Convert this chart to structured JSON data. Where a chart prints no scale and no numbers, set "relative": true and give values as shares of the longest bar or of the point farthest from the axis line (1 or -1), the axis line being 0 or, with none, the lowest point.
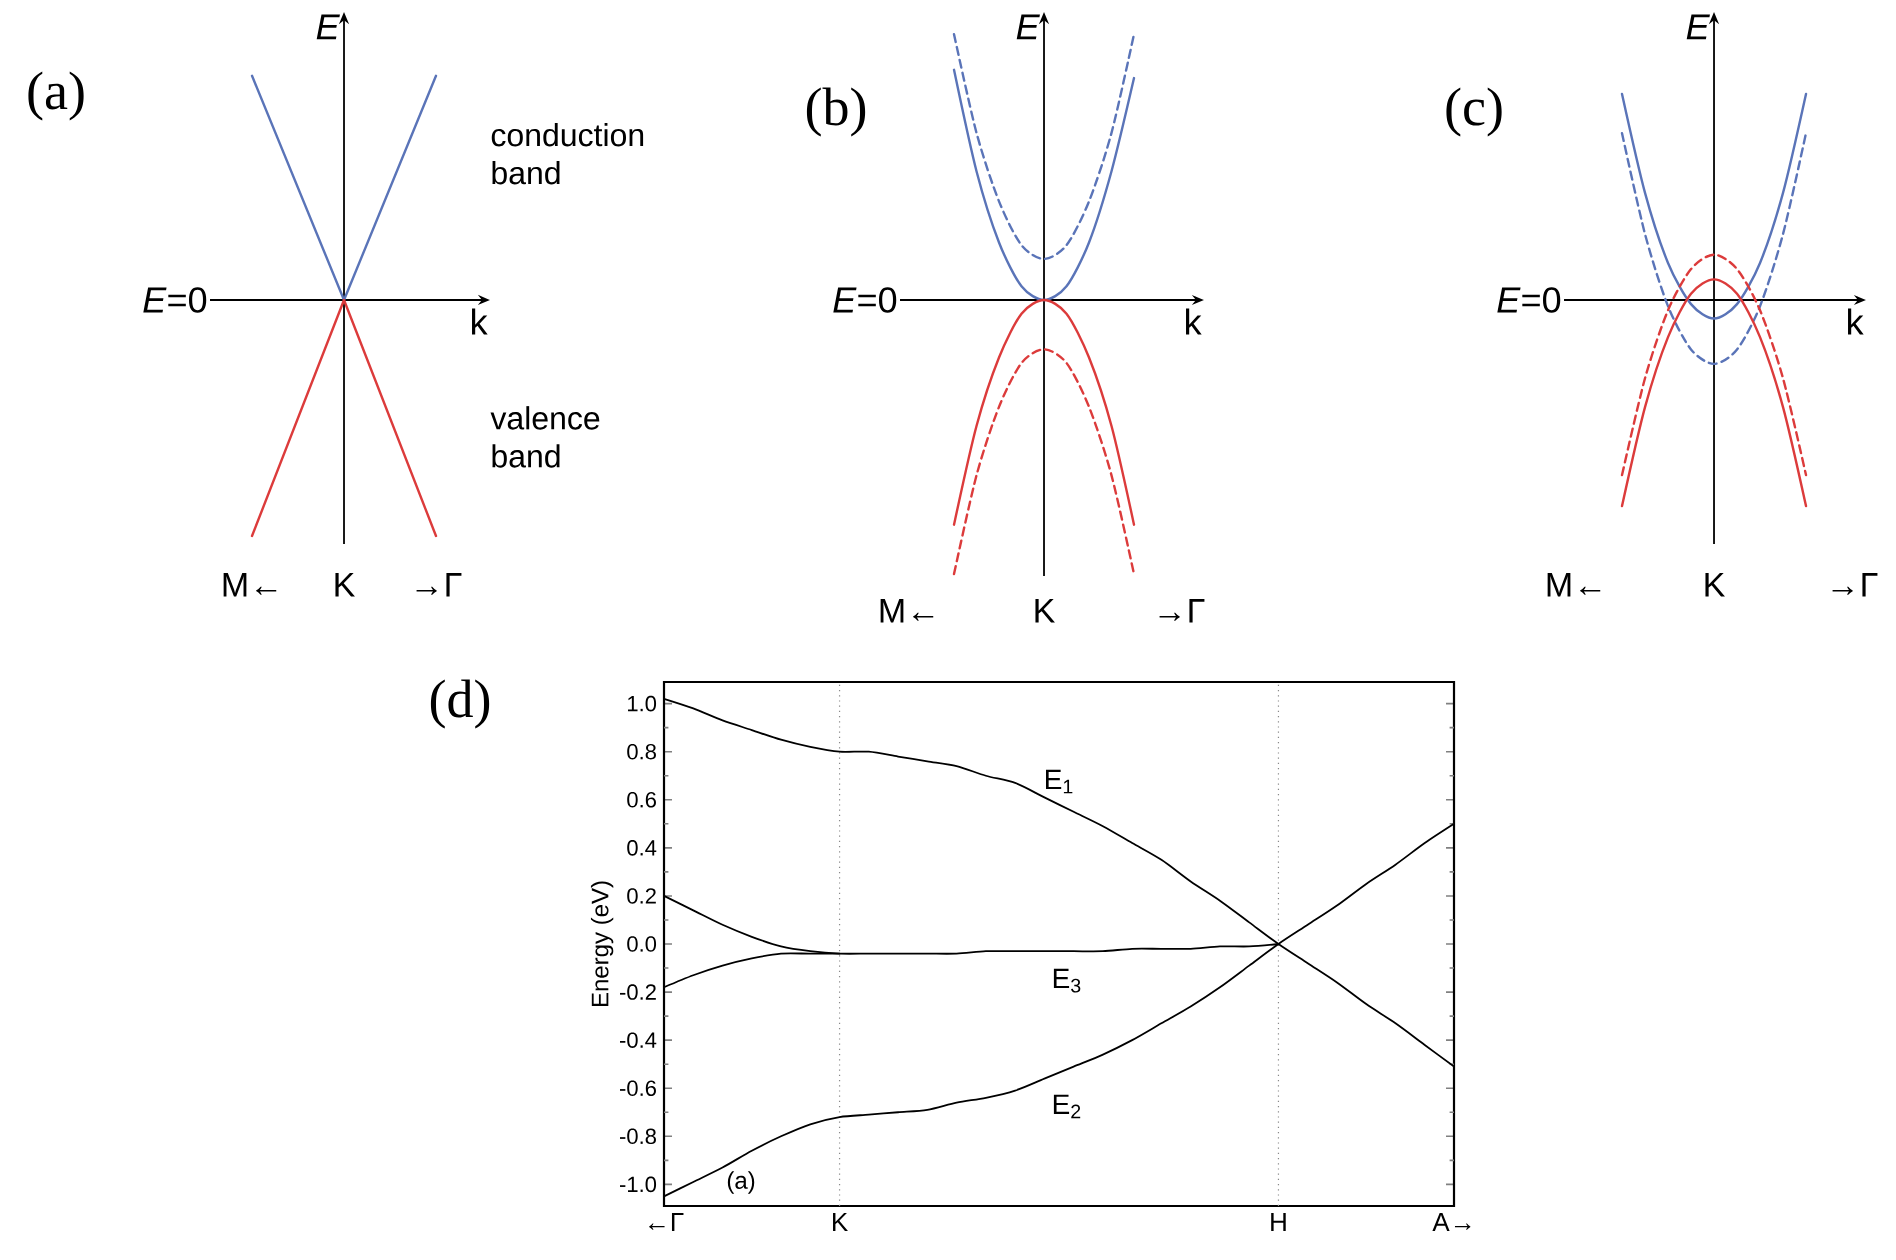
{
  "chart_data": [
    {
      "type": "line",
      "title": "(a)",
      "xlabel": "k",
      "ylabel": "E",
      "relative": true,
      "categories": [
        "M←",
        "K",
        "→Γ"
      ],
      "annotations": [
        "*E*=0",
        "conduction band",
        "valence band"
      ],
      "series": [
        {
          "color": "#5a74b8",
          "values": [
            0.95,
            0,
            0.95
          ]
        },
        {
          "color": "#dc3b3b",
          "values": [
            -1,
            0,
            -1
          ]
        }
      ]
    },
    {
      "type": "line",
      "title": "(b)",
      "xlabel": "k",
      "ylabel": "E",
      "relative": true,
      "categories": [
        "M←",
        null,
        null,
        null,
        null,
        null,
        "K",
        null,
        null,
        null,
        null,
        null,
        "→Γ"
      ],
      "annotations": [
        "*E*=0"
      ],
      "series": [
        {
          "color": "#5a74b8",
          "line_style": "solid",
          "values": [
            null,
            null,
            0.84,
            0.47,
            0.21,
            0.05,
            0,
            0.05,
            0.21,
            0.47,
            0.81,
            null,
            null
          ]
        },
        {
          "color": "#5a74b8",
          "line_style": "dashed",
          "values": [
            null,
            null,
            0.97,
            0.61,
            0.36,
            0.2,
            0.15,
            0.2,
            0.36,
            0.61,
            0.97,
            null,
            null
          ]
        },
        {
          "color": "#dc3b3b",
          "line_style": "solid",
          "values": [
            null,
            null,
            -0.82,
            -0.46,
            -0.21,
            -0.05,
            0,
            -0.05,
            -0.21,
            -0.46,
            -0.82,
            null,
            null
          ]
        },
        {
          "color": "#dc3b3b",
          "line_style": "dashed",
          "values": [
            null,
            null,
            -1,
            -0.64,
            -0.39,
            -0.23,
            -0.18,
            -0.23,
            -0.39,
            -0.64,
            -1,
            null,
            null
          ]
        }
      ]
    },
    {
      "type": "line",
      "title": "(c)",
      "xlabel": "k",
      "ylabel": "E",
      "relative": true,
      "categories": [
        "M←",
        null,
        null,
        null,
        null,
        null,
        "K",
        null,
        null,
        null,
        null,
        null,
        "→Γ"
      ],
      "annotations": [
        "*E*=0"
      ],
      "series": [
        {
          "color": "#5a74b8",
          "line_style": "solid",
          "values": [
            null,
            null,
            1.0,
            0.52,
            0.18,
            -0.02,
            -0.09,
            -0.02,
            0.18,
            0.52,
            1.0,
            null,
            null
          ]
        },
        {
          "color": "#5a74b8",
          "line_style": "dashed",
          "values": [
            null,
            null,
            0.81,
            0.32,
            -0.03,
            -0.24,
            -0.31,
            -0.24,
            -0.03,
            0.32,
            0.81,
            null,
            null
          ]
        },
        {
          "color": "#dc3b3b",
          "line_style": "solid",
          "values": [
            null,
            null,
            -1.0,
            -0.52,
            -0.18,
            0.03,
            0.1,
            0.03,
            -0.18,
            -0.52,
            -1.0,
            null,
            null
          ]
        },
        {
          "color": "#dc3b3b",
          "line_style": "dashed",
          "values": [
            null,
            null,
            -0.85,
            -0.38,
            -0.05,
            0.15,
            0.22,
            0.15,
            -0.05,
            -0.38,
            -0.85,
            null,
            null
          ]
        }
      ]
    },
    {
      "type": "line",
      "title": "(d)",
      "ylabel": "Energy (eV)",
      "ylim": [
        -1.09,
        1.09
      ],
      "categories": [
        "←Γ",
        null,
        null,
        null,
        null,
        null,
        "K",
        null,
        null,
        null,
        null,
        null,
        null,
        null,
        null,
        null,
        null,
        null,
        null,
        null,
        null,
        "H",
        null,
        null,
        null,
        null,
        null,
        "A→"
      ],
      "yticks": [
        {
          "value": -1.0,
          "label": "-1.0"
        },
        {
          "value": -0.9,
          "label": null
        },
        {
          "value": -0.8,
          "label": "-0.8"
        },
        {
          "value": -0.7,
          "label": null
        },
        {
          "value": -0.6,
          "label": "-0.6"
        },
        {
          "value": -0.5,
          "label": null
        },
        {
          "value": -0.4,
          "label": "-0.4"
        },
        {
          "value": -0.3,
          "label": null
        },
        {
          "value": -0.2,
          "label": "-0.2"
        },
        {
          "value": -0.1,
          "label": null
        },
        {
          "value": 0.0,
          "label": "0.0"
        },
        {
          "value": 0.1,
          "label": null
        },
        {
          "value": 0.2,
          "label": "0.2"
        },
        {
          "value": 0.3,
          "label": null
        },
        {
          "value": 0.4,
          "label": "0.4"
        },
        {
          "value": 0.5,
          "label": null
        },
        {
          "value": 0.6,
          "label": "0.6"
        },
        {
          "value": 0.7,
          "label": null
        },
        {
          "value": 0.8,
          "label": "0.8"
        },
        {
          "value": 0.9,
          "label": null
        },
        {
          "value": 1.0,
          "label": "1.0"
        }
      ],
      "ref_lines": [
        {
          "axis": "x",
          "value": "K",
          "line_style": "dotted",
          "color": "#888888"
        },
        {
          "axis": "x",
          "value": "H",
          "line_style": "dotted",
          "color": "#888888"
        }
      ],
      "annotations": [
        "E$_{1}$",
        "E$_{3}$",
        "E$_{2}$",
        "(a)"
      ],
      "series": [
        {
          "color": "#000000",
          "values": [
            1.02,
            0.98,
            0.93,
            0.89,
            0.85,
            0.82,
            0.8,
            0.8,
            0.78,
            0.76,
            0.74,
            0.7,
            0.67,
            0.61,
            0.55,
            0.49,
            0.42,
            0.35,
            0.26,
            0.18,
            0.09,
            0,
            -0.08,
            -0.16,
            -0.25,
            -0.33,
            -0.42,
            -0.51
          ]
        },
        {
          "color": "#000000",
          "values": [
            -1.05,
            -0.99,
            -0.93,
            -0.86,
            -0.8,
            -0.75,
            -0.72,
            -0.71,
            -0.7,
            -0.69,
            -0.66,
            -0.64,
            -0.61,
            -0.56,
            -0.51,
            -0.46,
            -0.4,
            -0.33,
            -0.26,
            -0.18,
            -0.09,
            0,
            0.08,
            0.16,
            0.25,
            0.33,
            0.42,
            0.5
          ]
        },
        {
          "color": "#000000",
          "values": [
            0.2,
            0.14,
            0.08,
            0.03,
            -0.01,
            -0.03,
            -0.04,
            -0.04,
            -0.04,
            -0.04,
            -0.04,
            -0.03,
            -0.03,
            -0.03,
            -0.03,
            -0.03,
            -0.02,
            -0.02,
            -0.02,
            -0.01,
            -0.01,
            0,
            null,
            null,
            null,
            null,
            null,
            null
          ]
        },
        {
          "color": "#000000",
          "values": [
            -0.18,
            -0.13,
            -0.09,
            -0.06,
            -0.04,
            -0.04,
            -0.04,
            null,
            null,
            null,
            null,
            null,
            null,
            null,
            null,
            null,
            null,
            null,
            null,
            null,
            null,
            null,
            null,
            null,
            null,
            null,
            null,
            null
          ]
        }
      ]
    }
  ]
}
